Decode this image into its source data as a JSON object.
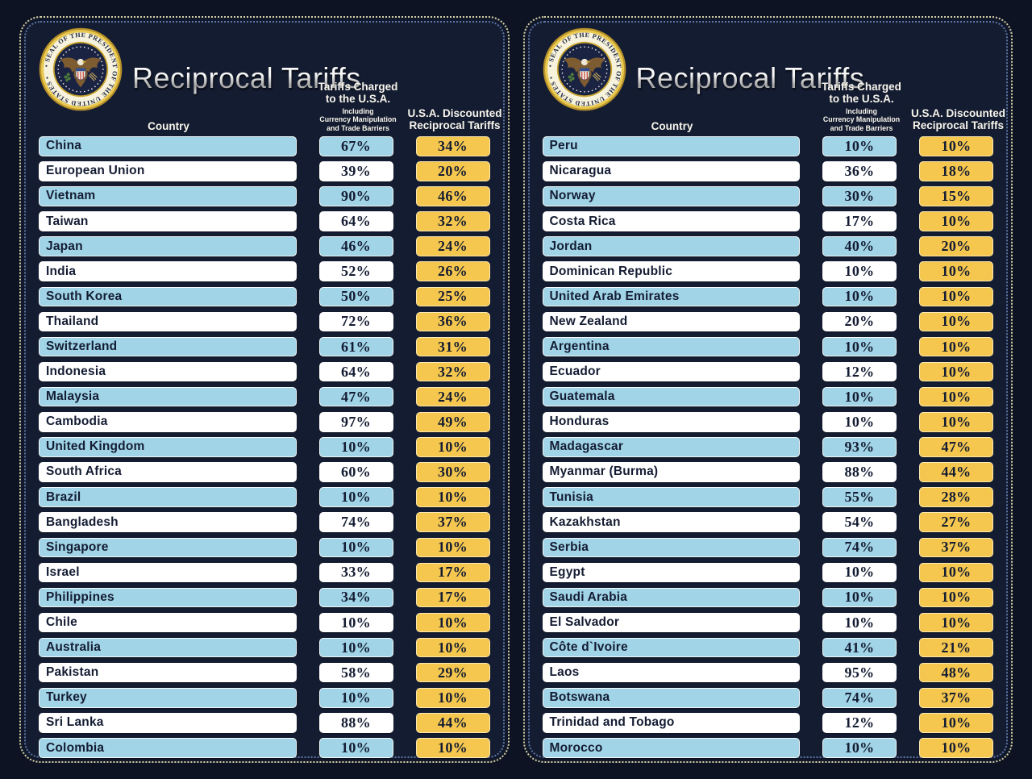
{
  "header": {
    "title": "Reciprocal Tariffs",
    "col_country": "Country",
    "col_charged": [
      "Tariffs Charged",
      "to the U.S.A."
    ],
    "col_charged_sub": [
      "Including",
      "Currency Manipulation",
      "and Trade Barriers"
    ],
    "col_discounted": [
      "U.S.A. Discounted",
      "Reciprocal Tariffs"
    ]
  },
  "seal": {
    "ring_text": "• SEAL OF THE PRESIDENT OF THE UNITED STATES •",
    "name": "Seal of the President of the United States"
  },
  "colors": {
    "background": "#0d1322",
    "panel": "#141c31",
    "row_blue": "#a0d4e6",
    "row_white": "#ffffff",
    "badge_yellow": "#f5c74e",
    "text_dark": "#141c33",
    "header_text": "#f8f6ec",
    "border_outer_dotted": "#d6d0a2",
    "border_inner_dotted": "#5d74a3",
    "seal_gold": "#d4af37"
  },
  "chart_data": {
    "type": "table",
    "title": "Reciprocal Tariffs",
    "columns": [
      "Country",
      "Tariffs Charged to the U.S.A. Including Currency Manipulation and Trade Barriers (%)",
      "U.S.A. Discounted Reciprocal Tariffs (%)"
    ],
    "panels": [
      {
        "rows": [
          [
            "China",
            67,
            34
          ],
          [
            "European Union",
            39,
            20
          ],
          [
            "Vietnam",
            90,
            46
          ],
          [
            "Taiwan",
            64,
            32
          ],
          [
            "Japan",
            46,
            24
          ],
          [
            "India",
            52,
            26
          ],
          [
            "South Korea",
            50,
            25
          ],
          [
            "Thailand",
            72,
            36
          ],
          [
            "Switzerland",
            61,
            31
          ],
          [
            "Indonesia",
            64,
            32
          ],
          [
            "Malaysia",
            47,
            24
          ],
          [
            "Cambodia",
            97,
            49
          ],
          [
            "United Kingdom",
            10,
            10
          ],
          [
            "South Africa",
            60,
            30
          ],
          [
            "Brazil",
            10,
            10
          ],
          [
            "Bangladesh",
            74,
            37
          ],
          [
            "Singapore",
            10,
            10
          ],
          [
            "Israel",
            33,
            17
          ],
          [
            "Philippines",
            34,
            17
          ],
          [
            "Chile",
            10,
            10
          ],
          [
            "Australia",
            10,
            10
          ],
          [
            "Pakistan",
            58,
            29
          ],
          [
            "Turkey",
            10,
            10
          ],
          [
            "Sri Lanka",
            88,
            44
          ],
          [
            "Colombia",
            10,
            10
          ]
        ]
      },
      {
        "rows": [
          [
            "Peru",
            10,
            10
          ],
          [
            "Nicaragua",
            36,
            18
          ],
          [
            "Norway",
            30,
            15
          ],
          [
            "Costa Rica",
            17,
            10
          ],
          [
            "Jordan",
            40,
            20
          ],
          [
            "Dominican Republic",
            10,
            10
          ],
          [
            "United Arab Emirates",
            10,
            10
          ],
          [
            "New Zealand",
            20,
            10
          ],
          [
            "Argentina",
            10,
            10
          ],
          [
            "Ecuador",
            12,
            10
          ],
          [
            "Guatemala",
            10,
            10
          ],
          [
            "Honduras",
            10,
            10
          ],
          [
            "Madagascar",
            93,
            47
          ],
          [
            "Myanmar (Burma)",
            88,
            44
          ],
          [
            "Tunisia",
            55,
            28
          ],
          [
            "Kazakhstan",
            54,
            27
          ],
          [
            "Serbia",
            74,
            37
          ],
          [
            "Egypt",
            10,
            10
          ],
          [
            "Saudi Arabia",
            10,
            10
          ],
          [
            "El Salvador",
            10,
            10
          ],
          [
            "Côte d`Ivoire",
            41,
            21
          ],
          [
            "Laos",
            95,
            48
          ],
          [
            "Botswana",
            74,
            37
          ],
          [
            "Trinidad and Tobago",
            12,
            10
          ],
          [
            "Morocco",
            10,
            10
          ]
        ]
      }
    ]
  }
}
